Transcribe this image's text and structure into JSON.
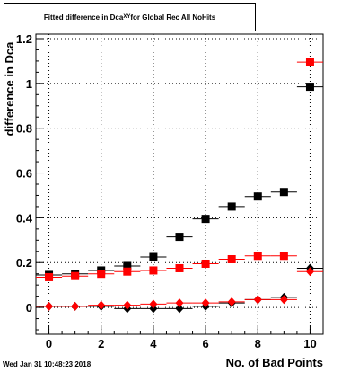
{
  "chart_data": {
    "type": "scatter",
    "title": "Fitted difference in Dca",
    "title_subscript": "XY",
    "title_suffix": " for Global Rec All NoHits",
    "xlabel": "No. of Bad Points",
    "ylabel": "difference in Dca",
    "xlim": [
      -0.5,
      10.5
    ],
    "ylim": [
      -0.12,
      1.22
    ],
    "xticks": [
      "0",
      "2",
      "4",
      "6",
      "8",
      "10"
    ],
    "yticks": [
      "0",
      "0.2",
      "0.4",
      "0.6",
      "0.8",
      "1",
      "1.2"
    ],
    "grid": true,
    "series": [
      {
        "marker": "square",
        "color": "#000000",
        "x": [
          0,
          1,
          2,
          3,
          4,
          5,
          6,
          7,
          8,
          9,
          10
        ],
        "y": [
          0.145,
          0.15,
          0.165,
          0.185,
          0.225,
          0.315,
          0.395,
          0.45,
          0.495,
          0.515,
          0.985
        ]
      },
      {
        "marker": "square",
        "color": "#ff0000",
        "x": [
          0,
          1,
          2,
          3,
          4,
          5,
          6,
          7,
          8,
          9,
          10
        ],
        "y": [
          0.135,
          0.14,
          0.15,
          0.16,
          0.165,
          0.175,
          0.195,
          0.215,
          0.23,
          0.23,
          1.095
        ]
      },
      {
        "marker": "diamond",
        "color": "#000000",
        "x": [
          0,
          1,
          2,
          3,
          4,
          5,
          6,
          7,
          8,
          9,
          10
        ],
        "y": [
          0.005,
          0.005,
          0.005,
          -0.005,
          -0.005,
          -0.005,
          0.005,
          0.02,
          0.035,
          0.045,
          0.175
        ]
      },
      {
        "marker": "diamond",
        "color": "#ff0000",
        "x": [
          0,
          1,
          2,
          3,
          4,
          5,
          6,
          7,
          8,
          9,
          10
        ],
        "y": [
          0.005,
          0.005,
          0.01,
          0.01,
          0.015,
          0.02,
          0.02,
          0.025,
          0.035,
          0.035,
          0.16
        ]
      }
    ]
  },
  "footer": {
    "timestamp": "Wed Jan 31 10:48:23 2018"
  }
}
